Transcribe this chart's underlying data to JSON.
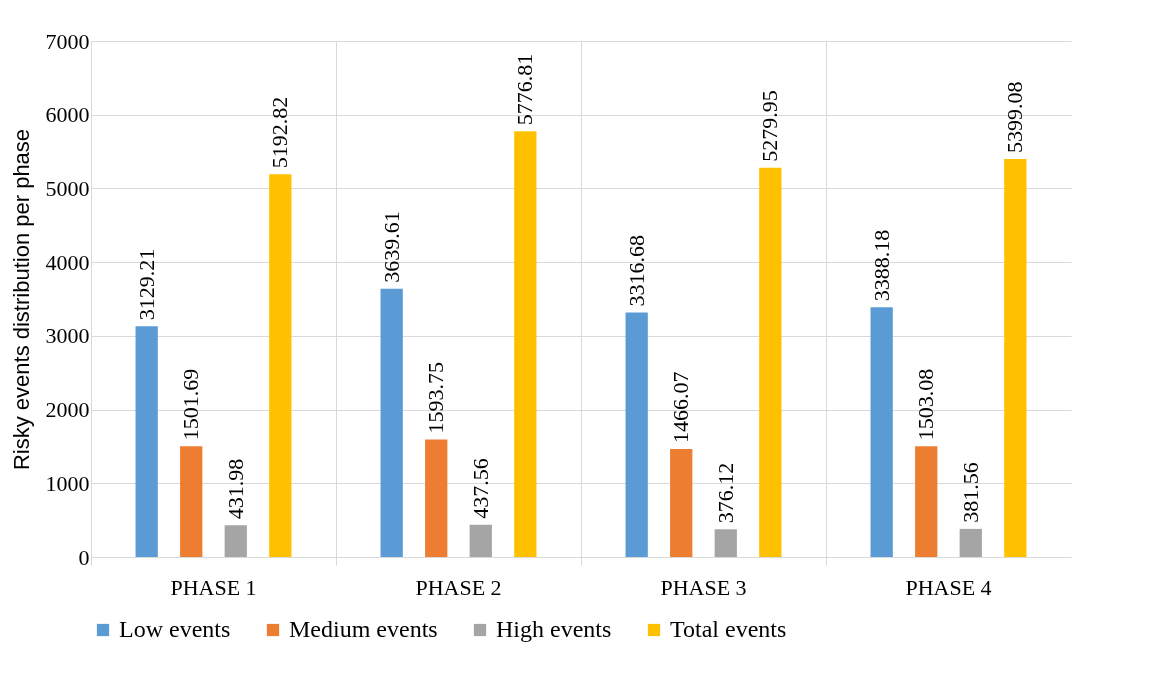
{
  "chart_data": {
    "type": "bar",
    "ylabel": "Risky events distribution per  phase",
    "categories": [
      "PHASE 1",
      "PHASE 2",
      "PHASE 3",
      "PHASE 4"
    ],
    "series": [
      {
        "name": "Low events",
        "color": "#5b9bd5",
        "values": [
          3129.21,
          3639.61,
          3316.68,
          3388.18
        ]
      },
      {
        "name": "Medium events",
        "color": "#ed7d31",
        "values": [
          1501.69,
          1593.75,
          1466.07,
          1503.08
        ]
      },
      {
        "name": "High events",
        "color": "#a5a5a5",
        "values": [
          431.98,
          437.56,
          376.12,
          381.56
        ]
      },
      {
        "name": "Total events",
        "color": "#ffc000",
        "values": [
          5192.82,
          5776.81,
          5279.95,
          5399.08
        ]
      }
    ],
    "ylim": [
      0,
      7000
    ],
    "yticks": [
      0,
      1000,
      2000,
      3000,
      4000,
      5000,
      6000,
      7000
    ],
    "grid": true,
    "legend": "bottom",
    "data_labels": true
  }
}
